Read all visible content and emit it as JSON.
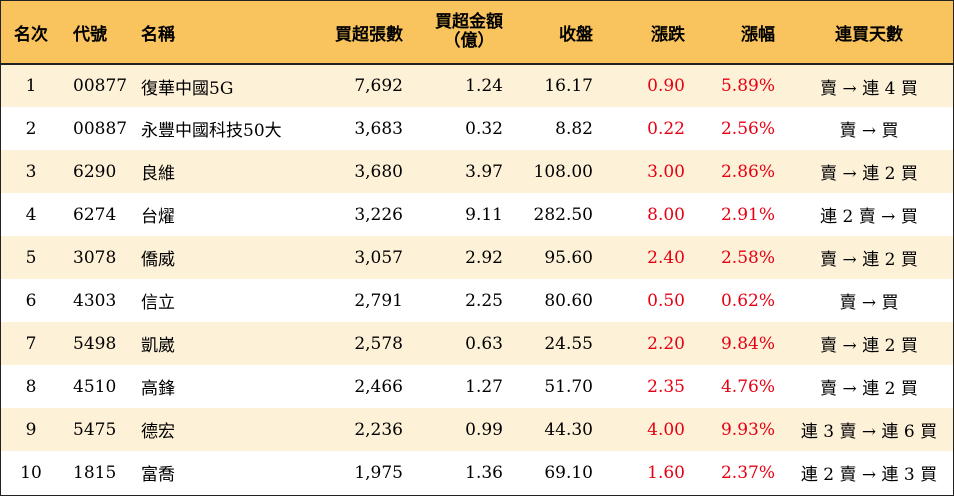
{
  "headers": {
    "rank": "名次",
    "code": "代號",
    "name": "名稱",
    "net_buy_lots": "買超張數",
    "net_buy_amount_line1": "買超金額",
    "net_buy_amount_line2": "（億）",
    "close": "收盤",
    "change": "漲跌",
    "change_pct": "漲幅",
    "trend": "連買天數"
  },
  "colors": {
    "header_bg": "#f9c45e",
    "stripe_bg": "#fdf1d8",
    "up_red": "#e60012"
  },
  "rows": [
    {
      "rank": "1",
      "code": "00877",
      "name": "復華中國5G",
      "lots": "7,692",
      "amount": "1.24",
      "close": "16.17",
      "change": "0.90",
      "pct": "5.89%",
      "trend": "賣 → 連 4 買"
    },
    {
      "rank": "2",
      "code": "00887",
      "name": "永豐中國科技50大",
      "lots": "3,683",
      "amount": "0.32",
      "close": "8.82",
      "change": "0.22",
      "pct": "2.56%",
      "trend": "賣 → 買"
    },
    {
      "rank": "3",
      "code": "6290",
      "name": "良維",
      "lots": "3,680",
      "amount": "3.97",
      "close": "108.00",
      "change": "3.00",
      "pct": "2.86%",
      "trend": "賣 → 連 2 買"
    },
    {
      "rank": "4",
      "code": "6274",
      "name": "台燿",
      "lots": "3,226",
      "amount": "9.11",
      "close": "282.50",
      "change": "8.00",
      "pct": "2.91%",
      "trend": "連 2 賣 → 買"
    },
    {
      "rank": "5",
      "code": "3078",
      "name": "僑威",
      "lots": "3,057",
      "amount": "2.92",
      "close": "95.60",
      "change": "2.40",
      "pct": "2.58%",
      "trend": "賣 → 連 2 買"
    },
    {
      "rank": "6",
      "code": "4303",
      "name": "信立",
      "lots": "2,791",
      "amount": "2.25",
      "close": "80.60",
      "change": "0.50",
      "pct": "0.62%",
      "trend": "賣 → 買"
    },
    {
      "rank": "7",
      "code": "5498",
      "name": "凱崴",
      "lots": "2,578",
      "amount": "0.63",
      "close": "24.55",
      "change": "2.20",
      "pct": "9.84%",
      "trend": "賣 → 連 2 買"
    },
    {
      "rank": "8",
      "code": "4510",
      "name": "高鋒",
      "lots": "2,466",
      "amount": "1.27",
      "close": "51.70",
      "change": "2.35",
      "pct": "4.76%",
      "trend": "賣 → 連 2 買"
    },
    {
      "rank": "9",
      "code": "5475",
      "name": "德宏",
      "lots": "2,236",
      "amount": "0.99",
      "close": "44.30",
      "change": "4.00",
      "pct": "9.93%",
      "trend": "連 3 賣 → 連 6 買"
    },
    {
      "rank": "10",
      "code": "1815",
      "name": "富喬",
      "lots": "1,975",
      "amount": "1.36",
      "close": "69.10",
      "change": "1.60",
      "pct": "2.37%",
      "trend": "連 2 賣 → 連 3 買"
    }
  ]
}
